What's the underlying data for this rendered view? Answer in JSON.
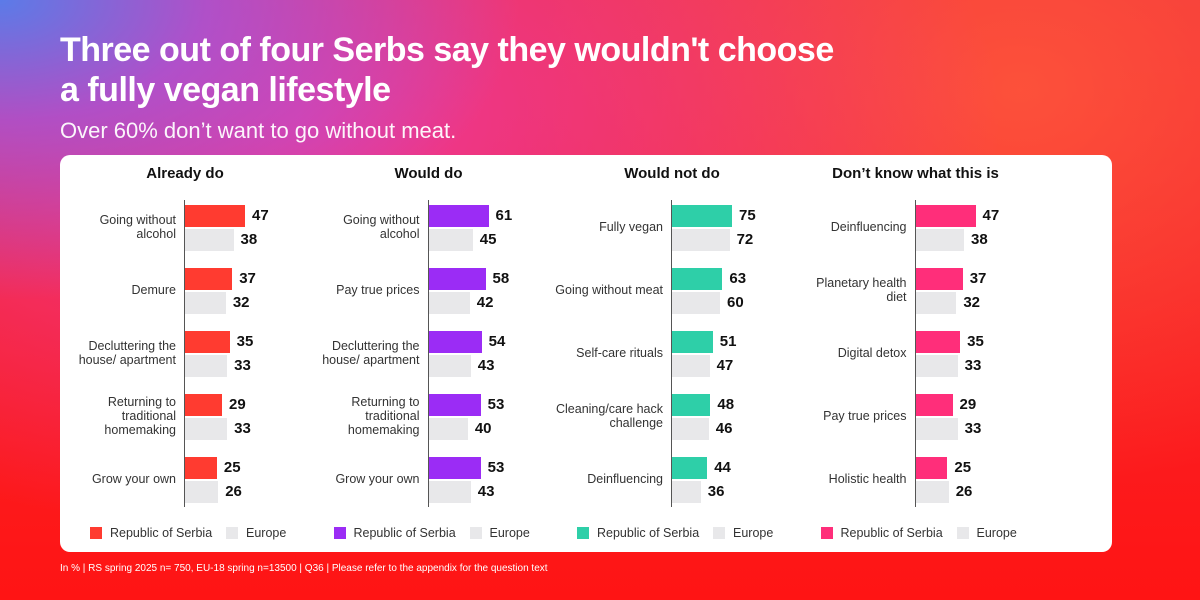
{
  "title_line1": "Three out of four Serbs say they wouldn't choose",
  "title_line2": "a fully vegan lifestyle",
  "subtitle": "Over 60% don’t want to go without meat.",
  "footnote": "In % |  RS spring 2025 n= 750, EU-18 spring n=13500 | Q36 | Please refer to the appendix for the question text",
  "chart_data": [
    {
      "type": "bar",
      "orientation": "horizontal",
      "title": "Already do",
      "color": "#ff3b30",
      "europe_color": "#e8e8ea",
      "categories": [
        "Going without alcohol",
        "Demure",
        "Decluttering the house/ apartment",
        "Returning to traditional homemaking",
        "Grow your own"
      ],
      "series": [
        {
          "name": "Republic of Serbia",
          "values": [
            47,
            37,
            35,
            29,
            25
          ]
        },
        {
          "name": "Europe",
          "values": [
            38,
            32,
            33,
            33,
            26
          ]
        }
      ]
    },
    {
      "type": "bar",
      "orientation": "horizontal",
      "title": "Would do",
      "color": "#9b2cf5",
      "europe_color": "#e8e8ea",
      "categories": [
        "Going without alcohol",
        "Pay true prices",
        "Decluttering the house/ apartment",
        "Returning to traditional homemaking",
        "Grow your own"
      ],
      "series": [
        {
          "name": "Republic of Serbia",
          "values": [
            61,
            58,
            54,
            53,
            53
          ]
        },
        {
          "name": "Europe",
          "values": [
            45,
            42,
            43,
            40,
            43
          ]
        }
      ]
    },
    {
      "type": "bar",
      "orientation": "horizontal",
      "title": "Would not do",
      "color": "#2ecfa8",
      "europe_color": "#e8e8ea",
      "categories": [
        "Fully vegan",
        "Going without meat",
        "Self-care rituals",
        "Cleaning/care hack challenge",
        "Deinfluencing"
      ],
      "series": [
        {
          "name": "Republic of Serbia",
          "values": [
            75,
            63,
            51,
            48,
            44
          ]
        },
        {
          "name": "Europe",
          "values": [
            72,
            60,
            47,
            46,
            36
          ]
        }
      ]
    },
    {
      "type": "bar",
      "orientation": "horizontal",
      "title": "Don’t know what this is",
      "color": "#ff2e7a",
      "europe_color": "#e8e8ea",
      "categories": [
        "Deinfluencing",
        "Planetary health diet",
        "Digital detox",
        "Pay true prices",
        "Holistic health"
      ],
      "series": [
        {
          "name": "Republic of Serbia",
          "values": [
            47,
            37,
            35,
            29,
            25
          ]
        },
        {
          "name": "Europe",
          "values": [
            38,
            32,
            33,
            33,
            26
          ]
        }
      ]
    }
  ]
}
